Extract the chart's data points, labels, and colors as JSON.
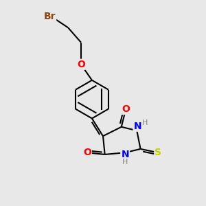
{
  "bg_color": "#e8e8e8",
  "bond_color": "#000000",
  "bond_width": 1.5,
  "atom_colors": {
    "Br": "#8B4513",
    "O": "#FF0000",
    "N": "#0000FF",
    "S": "#CCCC00",
    "H_color": "#808080"
  },
  "font_size": 9,
  "fig_size": [
    3.0,
    3.0
  ],
  "dpi": 100,
  "xlim": [
    0.2,
    4.8
  ],
  "ylim": [
    0.0,
    5.5
  ]
}
